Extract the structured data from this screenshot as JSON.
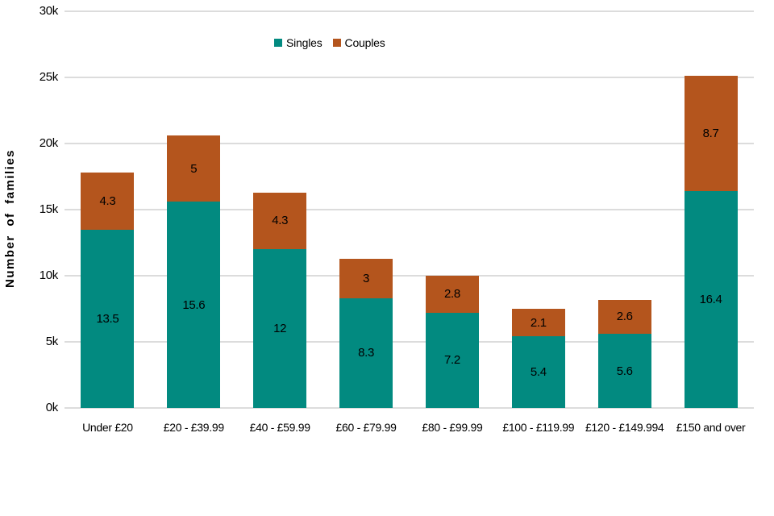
{
  "chart_data": {
    "type": "bar",
    "stacked": true,
    "title": "",
    "ylabel": "Number of families",
    "xlabel": "",
    "ylim": [
      0,
      30
    ],
    "y_ticks": [
      "0k",
      "5k",
      "10k",
      "15k",
      "20k",
      "25k",
      "30k"
    ],
    "value_unit": "thousands of families (labels shown in k)",
    "grid": true,
    "legend_position": "top",
    "gridline_color": "#dcdcdc",
    "categories": [
      "Under £20",
      "£20 - £39.99",
      "£40 - £59.99",
      "£60 - £79.99",
      "£80 - £99.99",
      "£100 - £119.99",
      "£120 - £149.994",
      "£150 and over"
    ],
    "series": [
      {
        "name": "Singles",
        "color": "#028a80",
        "values": [
          13.5,
          15.6,
          12,
          8.3,
          7.2,
          5.4,
          5.6,
          16.4
        ],
        "labels": [
          "13.5",
          "15.6",
          "12",
          "8.3",
          "7.2",
          "5.4",
          "5.6",
          "16.4"
        ]
      },
      {
        "name": "Couples",
        "color": "#b4551d",
        "values": [
          4.3,
          5,
          4.3,
          3,
          2.8,
          2.1,
          2.6,
          8.7
        ],
        "labels": [
          "4.3",
          "5",
          "4.3",
          "3",
          "2.8",
          "2.1",
          "2.6",
          "8.7"
        ]
      }
    ],
    "totals": [
      17.8,
      20.6,
      16.3,
      11.3,
      10.0,
      7.5,
      8.2,
      25.1
    ]
  }
}
